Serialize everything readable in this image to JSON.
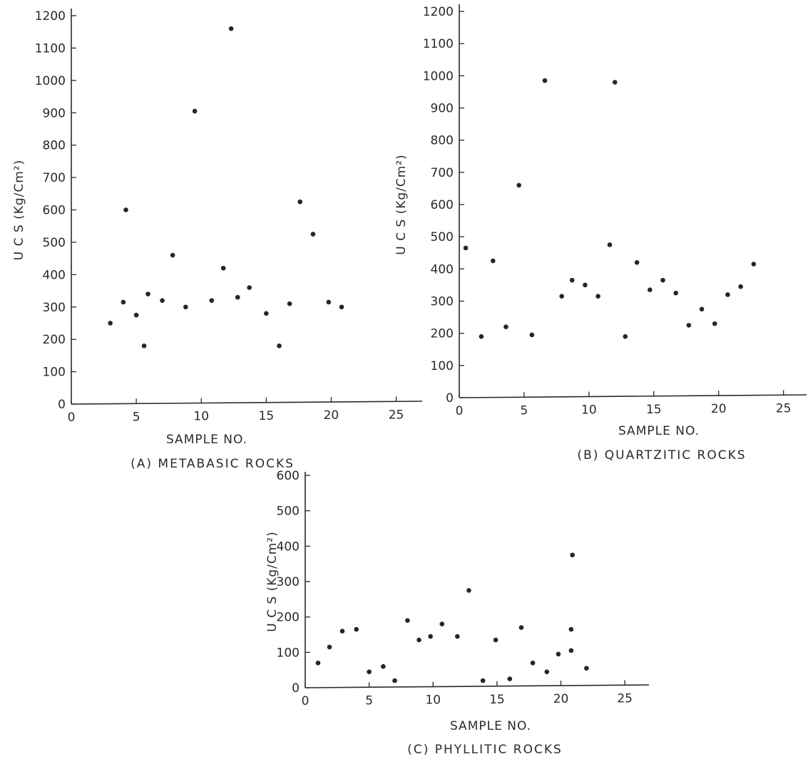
{
  "chart_data": [
    {
      "type": "scatter",
      "caption": "(A) METABASIC ROCKS",
      "xlabel": "SAMPLE NO.",
      "ylabel": "U C S (Kg/Cm²)",
      "xlim": [
        0,
        27
      ],
      "ylim": [
        0,
        1200
      ],
      "xticks": [
        0,
        5,
        10,
        15,
        20,
        25
      ],
      "yticks": [
        0,
        100,
        200,
        300,
        400,
        500,
        600,
        700,
        800,
        900,
        1000,
        1100,
        1200
      ],
      "grid": false,
      "points": [
        {
          "x": 3,
          "y": 250
        },
        {
          "x": 4,
          "y": 315
        },
        {
          "x": 4.2,
          "y": 600
        },
        {
          "x": 5,
          "y": 275
        },
        {
          "x": 5.6,
          "y": 180
        },
        {
          "x": 5.9,
          "y": 340
        },
        {
          "x": 7,
          "y": 320
        },
        {
          "x": 7.8,
          "y": 460
        },
        {
          "x": 8.8,
          "y": 300
        },
        {
          "x": 9.5,
          "y": 905
        },
        {
          "x": 10.8,
          "y": 320
        },
        {
          "x": 11.7,
          "y": 420
        },
        {
          "x": 12.3,
          "y": 1160
        },
        {
          "x": 12.8,
          "y": 330
        },
        {
          "x": 13.7,
          "y": 360
        },
        {
          "x": 15,
          "y": 280
        },
        {
          "x": 16,
          "y": 180
        },
        {
          "x": 16.8,
          "y": 310
        },
        {
          "x": 17.6,
          "y": 625
        },
        {
          "x": 18.6,
          "y": 525
        },
        {
          "x": 19.8,
          "y": 315
        },
        {
          "x": 20.8,
          "y": 300
        }
      ]
    },
    {
      "type": "scatter",
      "caption": "(B) QUARTZITIC ROCKS",
      "xlabel": "SAMPLE NO.",
      "ylabel": "U C S (Kg/Cm²)",
      "xlim": [
        0,
        27
      ],
      "ylim": [
        0,
        1200
      ],
      "xticks": [
        0,
        5,
        10,
        15,
        20,
        25
      ],
      "yticks": [
        0,
        100,
        200,
        300,
        400,
        500,
        600,
        700,
        800,
        900,
        1000,
        1100,
        1200
      ],
      "grid": false,
      "points": [
        {
          "x": 0.5,
          "y": 465
        },
        {
          "x": 1.7,
          "y": 190
        },
        {
          "x": 2.6,
          "y": 425
        },
        {
          "x": 3.6,
          "y": 220
        },
        {
          "x": 4.6,
          "y": 660
        },
        {
          "x": 5.6,
          "y": 195
        },
        {
          "x": 6.6,
          "y": 985
        },
        {
          "x": 7.9,
          "y": 315
        },
        {
          "x": 8.7,
          "y": 365
        },
        {
          "x": 9.7,
          "y": 350
        },
        {
          "x": 10.7,
          "y": 315
        },
        {
          "x": 11.6,
          "y": 475
        },
        {
          "x": 12,
          "y": 980
        },
        {
          "x": 12.8,
          "y": 190
        },
        {
          "x": 13.7,
          "y": 420
        },
        {
          "x": 14.7,
          "y": 335
        },
        {
          "x": 15.7,
          "y": 365
        },
        {
          "x": 16.7,
          "y": 325
        },
        {
          "x": 17.7,
          "y": 225
        },
        {
          "x": 18.7,
          "y": 275
        },
        {
          "x": 19.7,
          "y": 230
        },
        {
          "x": 20.7,
          "y": 320
        },
        {
          "x": 21.7,
          "y": 345
        },
        {
          "x": 22.7,
          "y": 415
        }
      ]
    },
    {
      "type": "scatter",
      "caption": "(C) PHYLLITIC ROCKS",
      "xlabel": "SAMPLE NO.",
      "ylabel": "U C S (Kg/Cm²)",
      "xlim": [
        0,
        27
      ],
      "ylim": [
        0,
        600
      ],
      "xticks": [
        0,
        5,
        10,
        15,
        20,
        25
      ],
      "yticks": [
        0,
        100,
        200,
        300,
        400,
        500,
        600
      ],
      "grid": false,
      "points": [
        {
          "x": 1,
          "y": 70
        },
        {
          "x": 1.9,
          "y": 115
        },
        {
          "x": 2.9,
          "y": 160
        },
        {
          "x": 4,
          "y": 165
        },
        {
          "x": 5,
          "y": 45
        },
        {
          "x": 6.1,
          "y": 60
        },
        {
          "x": 7,
          "y": 20
        },
        {
          "x": 8,
          "y": 190
        },
        {
          "x": 8.9,
          "y": 135
        },
        {
          "x": 9.8,
          "y": 145
        },
        {
          "x": 10.7,
          "y": 180
        },
        {
          "x": 11.9,
          "y": 145
        },
        {
          "x": 12.8,
          "y": 275
        },
        {
          "x": 13.9,
          "y": 20
        },
        {
          "x": 14.9,
          "y": 135
        },
        {
          "x": 16,
          "y": 25
        },
        {
          "x": 16.9,
          "y": 170
        },
        {
          "x": 17.8,
          "y": 70
        },
        {
          "x": 18.9,
          "y": 45
        },
        {
          "x": 19.8,
          "y": 95
        },
        {
          "x": 20.8,
          "y": 105
        },
        {
          "x": 20.8,
          "y": 165
        },
        {
          "x": 20.9,
          "y": 375
        },
        {
          "x": 22,
          "y": 55
        }
      ]
    }
  ]
}
